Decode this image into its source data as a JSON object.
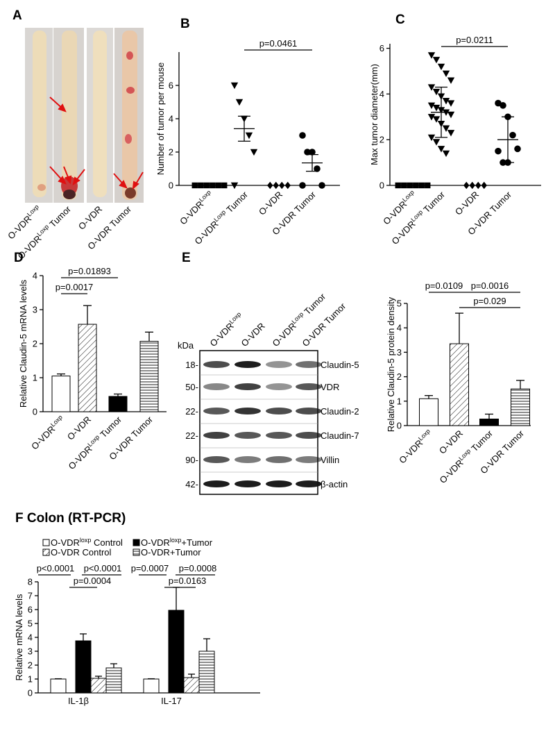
{
  "chart_data": [
    {
      "type": "image",
      "label": "A",
      "categories": [
        {
          "text": "O-VDR",
          "sup": "Loxp"
        },
        {
          "text": "O-VDR",
          "sup": "Loxp",
          "after": " Tumor"
        },
        {
          "text": "O-VDR"
        },
        {
          "text": "O-VDR",
          "after": " Tumor"
        }
      ]
    },
    {
      "type": "dot",
      "label": "B",
      "ylabel": "Number of tumor per mouse",
      "ylim": [
        0,
        8
      ],
      "yticks": [
        0,
        2,
        4,
        6
      ],
      "categories": [
        {
          "text": "O-VDR",
          "sup": "Loxp"
        },
        {
          "text": "O-VDR",
          "sup": "Loxp",
          "after": " Tumor"
        },
        {
          "text": "O-VDR"
        },
        {
          "text": "O-VDR",
          "after": " Tumor"
        }
      ],
      "markers": [
        "square",
        "triangle-down",
        "diamond",
        "circle"
      ],
      "values": [
        [
          0,
          0,
          0,
          0,
          0,
          0
        ],
        [
          6,
          5,
          4,
          3,
          2,
          0
        ],
        [
          0,
          0,
          0,
          0
        ],
        [
          3,
          2,
          2,
          1,
          0,
          0
        ]
      ],
      "means": [
        null,
        3.4,
        null,
        1.35
      ],
      "errors": [
        null,
        0.75,
        null,
        0.5
      ],
      "annotations": [
        "p=0.0461"
      ]
    },
    {
      "type": "dot",
      "label": "C",
      "ylabel": "Max tumor diameter(mm)",
      "ylim": [
        0,
        6.2
      ],
      "yticks": [
        0,
        2,
        4,
        6
      ],
      "categories": [
        {
          "text": "O-VDR",
          "sup": "Loxp"
        },
        {
          "text": "O-VDR",
          "sup": "Loxp",
          "after": " Tumor"
        },
        {
          "text": "O-VDR"
        },
        {
          "text": "O-VDR",
          "after": " Tumor"
        }
      ],
      "markers": [
        "square",
        "triangle-down",
        "diamond",
        "circle"
      ],
      "values": [
        [
          0,
          0,
          0,
          0,
          0,
          0
        ],
        [
          5.7,
          5.5,
          5.2,
          4.9,
          4.6,
          4.3,
          4.1,
          3.9,
          3.7,
          3.6,
          3.5,
          3.4,
          3.3,
          3.2,
          3.1,
          3.0,
          2.9,
          2.7,
          2.5,
          2.3,
          2.1,
          1.9,
          1.6,
          1.4
        ],
        [
          0,
          0,
          0,
          0
        ],
        [
          3.6,
          3.5,
          3.0,
          2.2,
          1.6,
          1.5,
          1.0,
          1.0
        ]
      ],
      "means": [
        null,
        3.2,
        null,
        2.0
      ],
      "errors": [
        null,
        1.1,
        null,
        1.0
      ],
      "annotations": [
        "p=0.0211"
      ]
    },
    {
      "type": "bar",
      "label": "D",
      "ylabel": "Relative Claudin-5 mRNA levels",
      "ylim": [
        0,
        4
      ],
      "yticks": [
        0,
        1,
        2,
        3,
        4
      ],
      "categories": [
        {
          "text": "O-VDR",
          "sup": "Loxp"
        },
        {
          "text": "O-VDR"
        },
        {
          "text": "O-VDR",
          "sup": "Loxp",
          "after": " Tumor"
        },
        {
          "text": "O-VDR",
          "after": " Tumor"
        }
      ],
      "values": [
        1.05,
        2.57,
        0.45,
        2.07
      ],
      "errors": [
        0.06,
        0.55,
        0.07,
        0.27
      ],
      "patterns": [
        "white",
        "diagonal",
        "black",
        "horizontal"
      ],
      "annotations": [
        "p=0.01893",
        "p=0.0017"
      ]
    },
    {
      "type": "blot",
      "label": "E",
      "unit": "kDa",
      "lanes": [
        {
          "text": "O-VDR",
          "sup": "Loxp"
        },
        {
          "text": "O-VDR"
        },
        {
          "text": "O-VDR",
          "sup": "Loxp",
          "after": " Tumor"
        },
        {
          "text": "O-VDR",
          "after": " Tumor"
        }
      ],
      "rows": [
        {
          "marker": "18-",
          "protein": "Claudin-5"
        },
        {
          "marker": "50-",
          "protein": "VDR"
        },
        {
          "marker": "22-",
          "protein": "Claudin-2"
        },
        {
          "marker": "22-",
          "protein": "Claudin-7"
        },
        {
          "marker": "90-",
          "protein": "Villin"
        },
        {
          "marker": "42-",
          "protein": "β-actin"
        }
      ]
    },
    {
      "type": "bar",
      "ylabel": "Relative Claudin-5 protein density",
      "ylim": [
        0,
        5
      ],
      "yticks": [
        0,
        1,
        2,
        3,
        4,
        5
      ],
      "categories": [
        {
          "text": "O-VDR",
          "sup": "Loxp"
        },
        {
          "text": "O-VDR"
        },
        {
          "text": "O-VDR",
          "sup": "Loxp",
          "after": " Tumor"
        },
        {
          "text": "O-VDR",
          "after": " Tumor"
        }
      ],
      "values": [
        1.1,
        3.35,
        0.27,
        1.5
      ],
      "errors": [
        0.13,
        1.25,
        0.2,
        0.35
      ],
      "patterns": [
        "white",
        "diagonal",
        "black",
        "horizontal"
      ],
      "annotations": [
        "p=0.0109",
        "p=0.0016",
        "p=0.029"
      ]
    },
    {
      "type": "grouped_bar",
      "title": "F Colon (RT-PCR)",
      "ylabel": "Relative mRNA levels",
      "ylim": [
        0,
        8
      ],
      "yticks": [
        0,
        1,
        2,
        3,
        4,
        5,
        6,
        7,
        8
      ],
      "categories": [
        "IL-1β",
        "IL-17"
      ],
      "series": [
        {
          "name": {
            "text": "O-VDR",
            "sup": "loxp",
            "after": " Control"
          },
          "pattern": "white",
          "values": [
            1,
            1
          ],
          "errors": [
            0.02,
            0.02
          ]
        },
        {
          "name": {
            "text": "O-VDR",
            "sup": "loxp",
            "after": "+Tumor"
          },
          "pattern": "black",
          "values": [
            3.75,
            5.95
          ],
          "errors": [
            0.5,
            1.65
          ]
        },
        {
          "name": {
            "text": "O-VDR Control"
          },
          "pattern": "diagonal",
          "values": [
            1.05,
            1.1
          ],
          "errors": [
            0.15,
            0.25
          ]
        },
        {
          "name": {
            "text": "O-VDR+Tumor"
          },
          "pattern": "horizontal",
          "values": [
            1.8,
            3.0
          ],
          "errors": [
            0.3,
            0.9
          ]
        }
      ],
      "annotations": [
        "p<0.0001",
        "p<0.0001",
        "p=0.0007",
        "p=0.0008",
        "p=0.0004",
        "p=0.0163"
      ]
    }
  ]
}
